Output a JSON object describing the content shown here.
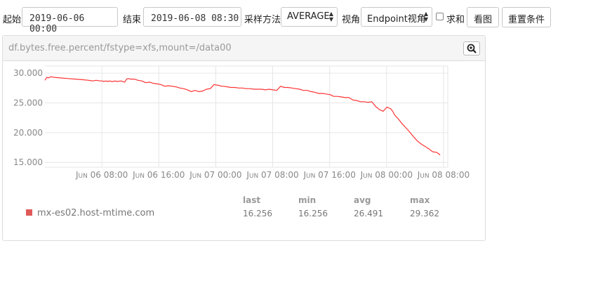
{
  "toolbar": {
    "start_label": "起始",
    "start_value": "2019-06-06 00:00",
    "end_label": "结束",
    "end_value": "2019-06-08 08:30",
    "sample_label": "采样方法",
    "sample_value": "AVERAGE",
    "view_label": "视角",
    "view_value": "Endpoint视角",
    "sum_label": "求和",
    "sum_checked": false,
    "view_button": "看图",
    "reset_button": "重置条件"
  },
  "panel": {
    "title": "df.bytes.free.percent/fstype=xfs,mount=/data00",
    "zoom_icon": "zoom-in-icon"
  },
  "chart_data": {
    "type": "line",
    "x_tick_labels": [
      "Jun 06 08:00",
      "Jun 06 16:00",
      "Jun 07 00:00",
      "Jun 07 08:00",
      "Jun 07 16:00",
      "Jun 08 00:00",
      "Jun 08 08:00"
    ],
    "x_ticks_hours": [
      8,
      16,
      24,
      32,
      40,
      48,
      56
    ],
    "xlim_hours": [
      0,
      56.6
    ],
    "ylim": [
      14.2,
      31.2
    ],
    "y_ticks": [
      "15.000",
      "20.000",
      "25.000",
      "30.000"
    ],
    "y_tick_values": [
      15,
      20,
      25,
      30
    ],
    "grid": true,
    "series": [
      {
        "name": "mx-es02.host-mtime.com",
        "color": "#ff3333",
        "x_hours": [
          0.0,
          0.27,
          0.53,
          0.8,
          1.34,
          2.14,
          3.2,
          4.27,
          5.34,
          6.14,
          6.67,
          7.21,
          7.74,
          8.01,
          8.27,
          8.54,
          8.81,
          9.07,
          9.34,
          9.61,
          9.87,
          10.14,
          10.68,
          11.21,
          11.48,
          11.74,
          12.01,
          12.55,
          13.08,
          13.61,
          14.15,
          14.68,
          15.22,
          15.75,
          16.28,
          16.82,
          17.35,
          17.89,
          18.42,
          18.95,
          19.49,
          20.02,
          20.56,
          21.09,
          21.62,
          22.16,
          22.69,
          23.23,
          23.76,
          24.03,
          24.29,
          24.56,
          24.83,
          25.1,
          25.63,
          26.16,
          26.7,
          27.23,
          27.77,
          28.3,
          28.83,
          29.37,
          29.9,
          30.44,
          30.97,
          31.5,
          32.04,
          32.57,
          33.11,
          33.64,
          34.17,
          34.71,
          35.24,
          35.78,
          36.31,
          36.84,
          37.38,
          37.91,
          38.45,
          38.98,
          39.51,
          40.05,
          40.58,
          41.12,
          41.65,
          42.18,
          42.72,
          43.25,
          43.79,
          44.32,
          44.85,
          45.39,
          45.92,
          46.46,
          46.99,
          47.52,
          48.06,
          48.59,
          48.86,
          49.13,
          49.66,
          50.19,
          50.73,
          51.26,
          51.8,
          52.33,
          52.86,
          53.4,
          53.93,
          54.47,
          55.0,
          55.27,
          55.53
        ],
        "y": [
          28.8,
          29.3,
          29.2,
          29.4,
          29.3,
          29.2,
          29.1,
          29.0,
          28.9,
          28.8,
          28.7,
          28.8,
          28.7,
          28.7,
          28.6,
          28.7,
          28.6,
          28.7,
          28.6,
          28.6,
          28.7,
          28.6,
          28.7,
          28.5,
          29.0,
          29.1,
          29.0,
          29.0,
          28.8,
          28.7,
          28.4,
          28.5,
          28.3,
          28.2,
          28.1,
          27.8,
          27.9,
          27.8,
          27.7,
          27.5,
          27.4,
          27.2,
          26.9,
          27.1,
          26.9,
          27.0,
          27.3,
          27.4,
          28.1,
          28.0,
          28.0,
          27.9,
          27.8,
          27.8,
          27.7,
          27.6,
          27.6,
          27.5,
          27.5,
          27.4,
          27.4,
          27.3,
          27.3,
          27.3,
          27.2,
          27.3,
          27.2,
          27.1,
          27.8,
          27.6,
          27.6,
          27.5,
          27.4,
          27.3,
          27.1,
          27.1,
          26.9,
          26.8,
          26.6,
          26.6,
          26.5,
          26.4,
          26.1,
          26.1,
          26.0,
          25.9,
          25.9,
          25.5,
          25.4,
          25.2,
          25.2,
          25.1,
          25.2,
          24.4,
          23.9,
          23.6,
          24.3,
          24.0,
          23.6,
          23.0,
          22.3,
          21.5,
          20.8,
          20.1,
          19.3,
          18.6,
          18.1,
          17.7,
          17.3,
          16.8,
          16.7,
          16.5,
          16.26
        ]
      }
    ]
  },
  "legend": {
    "headers": [
      "last",
      "min",
      "avg",
      "max"
    ],
    "series_name": "mx-es02.host-mtime.com",
    "values": [
      "16.256",
      "16.256",
      "26.491",
      "29.362"
    ]
  }
}
